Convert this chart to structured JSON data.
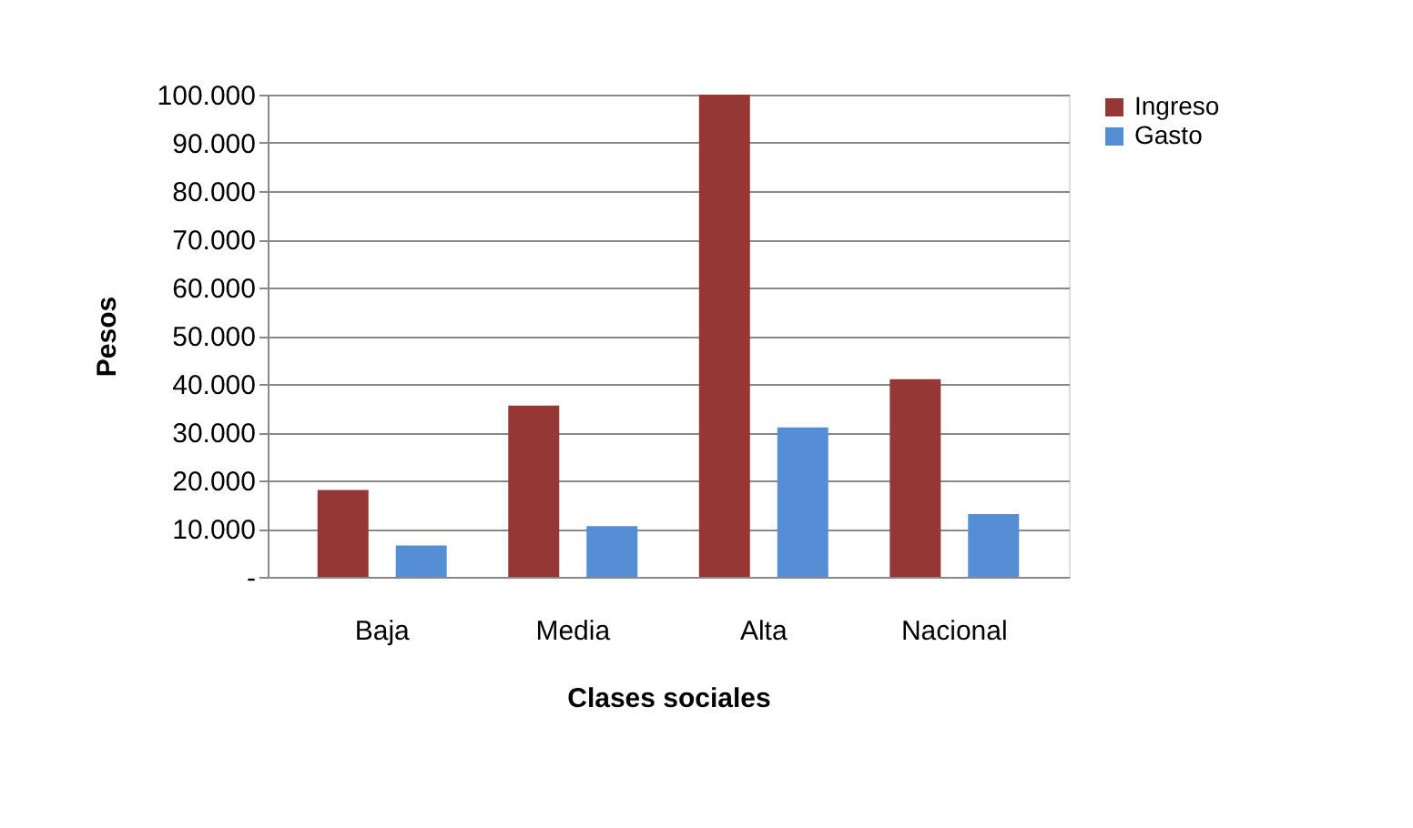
{
  "chart_data": {
    "type": "bar",
    "xlabel": "Clases sociales",
    "ylabel": "Pesos",
    "categories": [
      "Baja",
      "Media",
      "Alta",
      "Nacional"
    ],
    "series": [
      {
        "name": "Ingreso",
        "color": "#953735",
        "values": [
          18000,
          35500,
          100000,
          41000
        ]
      },
      {
        "name": "Gasto",
        "color": "#558ed5",
        "values": [
          6500,
          10500,
          31000,
          13000
        ]
      }
    ],
    "ylim": [
      0,
      100000
    ],
    "yticks": [
      {
        "value": 0,
        "label": "-"
      },
      {
        "value": 10000,
        "label": "10.000"
      },
      {
        "value": 20000,
        "label": "20.000"
      },
      {
        "value": 30000,
        "label": "30.000"
      },
      {
        "value": 40000,
        "label": "40.000"
      },
      {
        "value": 50000,
        "label": "50.000"
      },
      {
        "value": 60000,
        "label": "60.000"
      },
      {
        "value": 70000,
        "label": "70.000"
      },
      {
        "value": 80000,
        "label": "80.000"
      },
      {
        "value": 90000,
        "label": "90.000"
      },
      {
        "value": 100000,
        "label": "100.000"
      }
    ],
    "grid": "y",
    "legend": "right"
  }
}
